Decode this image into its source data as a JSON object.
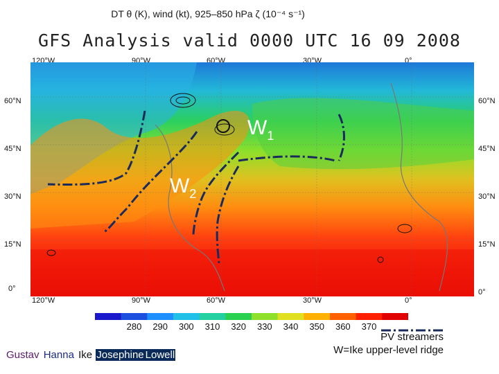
{
  "caption": "DT θ (K), wind (kt), 925–850 hPa ζ (10⁻⁴ s⁻¹)",
  "title": "GFS Analysis valid 0000 UTC 16 09 2008",
  "lon_labels": [
    "120°W",
    "90°W",
    "60°W",
    "30°W",
    "0°"
  ],
  "lat_labels": [
    "60°N",
    "45°N",
    "30°N",
    "15°N",
    "0°"
  ],
  "annotations": {
    "w1": "W",
    "w1_sub": "1",
    "w2": "W",
    "w2_sub": "2"
  },
  "colorbar": {
    "ticks": [
      "280",
      "290",
      "300",
      "310",
      "320",
      "330",
      "340",
      "350",
      "360",
      "370"
    ],
    "colors": [
      "#1a1acc",
      "#1e50e0",
      "#1e90ff",
      "#20c0e8",
      "#22d0a0",
      "#2ad050",
      "#8ee02a",
      "#e0e020",
      "#ffb000",
      "#ff6000",
      "#ff2000",
      "#e00000"
    ]
  },
  "storms": [
    {
      "name": "Gustav",
      "color": "#5a1a6a"
    },
    {
      "name": "Hanna",
      "color": "#1a2a8a"
    },
    {
      "name": "Ike",
      "color": "#111111"
    },
    {
      "name": "Josephine",
      "color": "#ffffff",
      "bg": "#0a2a5a"
    },
    {
      "name": "Lowell",
      "color": "#ffffff",
      "bg": "#0a2a5a"
    }
  ],
  "legend": {
    "streamer_label": "PV streamers",
    "ridge_label": "W=Ike upper-level ridge"
  }
}
